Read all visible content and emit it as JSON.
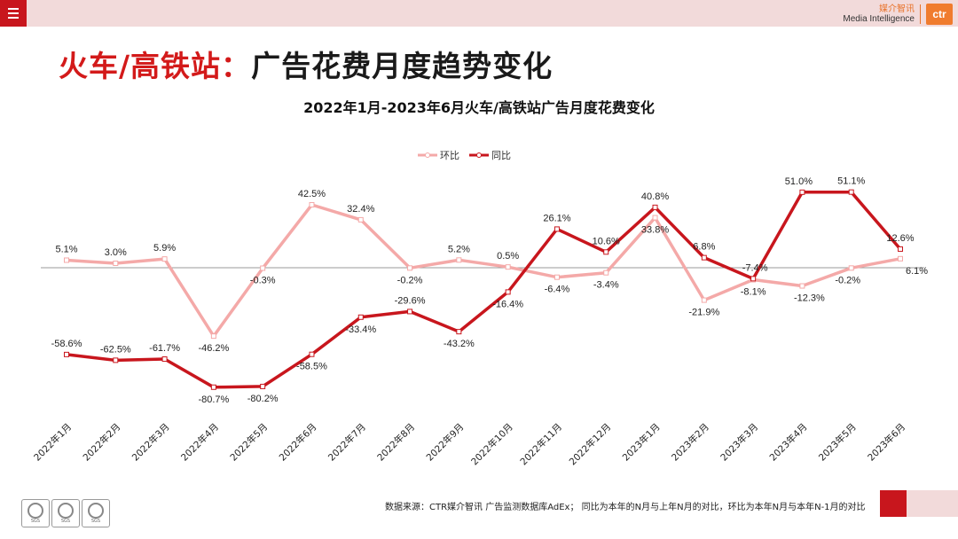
{
  "header": {
    "brand_cn": "媒介智讯",
    "brand_en": "Media Intelligence",
    "brand_logo": "ctr"
  },
  "title": {
    "accent": "火车/高铁站：",
    "main": "广告花费月度趋势变化"
  },
  "footer": {
    "source": "数据来源：CTR媒介智讯 广告监测数据库AdEx； 同比为本年的N月与上年N月的对比，环比为本年N月与本年N-1月的对比",
    "seal_label": "SGS"
  },
  "colors": {
    "mom": "#f4a9a8",
    "yoy": "#c8161d",
    "brand_red": "#c8161d"
  },
  "chart_data": {
    "type": "line",
    "title": "2022年1月-2023年6月火车/高铁站广告月度花费变化",
    "categories": [
      "2022年1月",
      "2022年2月",
      "2022年3月",
      "2022年4月",
      "2022年5月",
      "2022年6月",
      "2022年7月",
      "2022年8月",
      "2022年9月",
      "2022年10月",
      "2022年11月",
      "2022年12月",
      "2023年1月",
      "2023年2月",
      "2023年3月",
      "2023年4月",
      "2023年5月",
      "2023年6月"
    ],
    "series": [
      {
        "name": "环比",
        "values": [
          5.1,
          3.0,
          5.9,
          -46.2,
          -0.3,
          42.5,
          32.4,
          -0.2,
          5.2,
          0.5,
          -6.4,
          -3.4,
          33.8,
          -21.9,
          -8.1,
          -12.3,
          -0.2,
          6.1
        ],
        "labels": [
          "5.1%",
          "3.0%",
          "5.9%",
          "-46.2%",
          "-0.3%",
          "42.5%",
          "32.4%",
          "-0.2%",
          "5.2%",
          "0.5%",
          "-6.4%",
          "-3.4%",
          "33.8%",
          "-21.9%",
          "-8.1%",
          "-12.3%",
          "-0.2%",
          "6.1%"
        ]
      },
      {
        "name": "同比",
        "values": [
          -58.6,
          -62.5,
          -61.7,
          -80.7,
          -80.2,
          -58.5,
          -33.4,
          -29.6,
          -43.2,
          -16.4,
          26.1,
          10.6,
          40.8,
          6.8,
          -7.4,
          51.0,
          51.1,
          12.6
        ],
        "labels": [
          "-58.6%",
          "-62.5%",
          "-61.7%",
          "-80.7%",
          "-80.2%",
          "-58.5%",
          "-33.4%",
          "-29.6%",
          "-43.2%",
          "-16.4%",
          "26.1%",
          "10.6%",
          "40.8%",
          "6.8%",
          "-7.4%",
          "51.0%",
          "51.1%",
          "12.6%"
        ]
      }
    ],
    "ylim": [
      -100,
      60
    ],
    "zero_line": true,
    "legend_position": "top-center"
  }
}
